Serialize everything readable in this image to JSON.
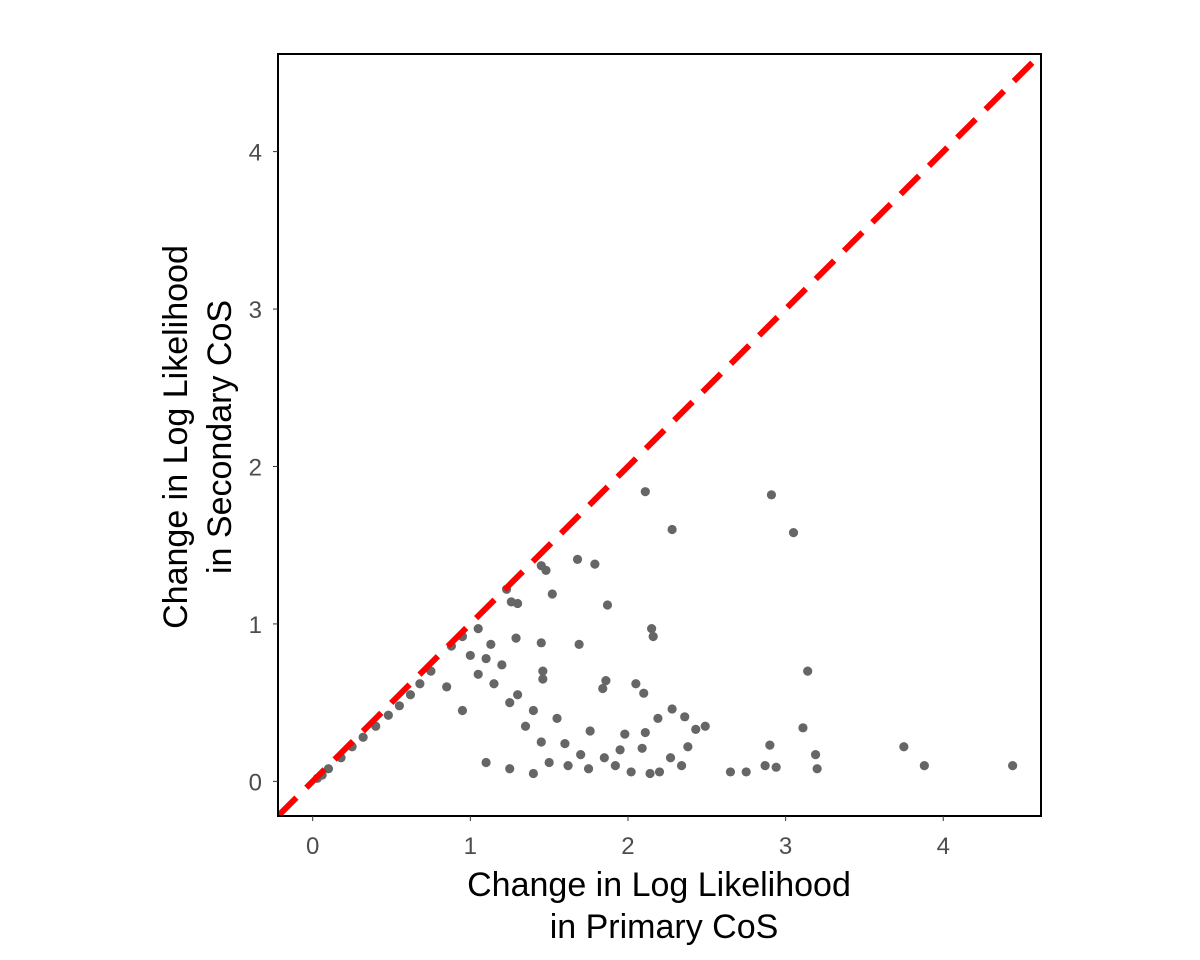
{
  "chart_data": {
    "type": "scatter",
    "title": "",
    "xlabel_lines": [
      "Change in Log Likelihood",
      "in Primary CoS"
    ],
    "ylabel_lines": [
      "Change in Log Likelihood",
      "in Secondary CoS"
    ],
    "xlim": [
      -0.22,
      4.62
    ],
    "ylim": [
      -0.22,
      4.62
    ],
    "xticks": [
      0,
      1,
      2,
      3,
      4
    ],
    "yticks": [
      0,
      1,
      2,
      3,
      4
    ],
    "grid": false,
    "reference_line": {
      "slope": 1,
      "intercept": 0,
      "style": "dashed",
      "color": "#ff0000"
    },
    "point_color": "#666666",
    "series": [
      {
        "values": [
          {
            "x": 4.44,
            "y": 0.1
          },
          {
            "x": 3.88,
            "y": 0.1
          },
          {
            "x": 3.75,
            "y": 0.22
          },
          {
            "x": 3.2,
            "y": 0.08
          },
          {
            "x": 3.19,
            "y": 0.17
          },
          {
            "x": 3.14,
            "y": 0.7
          },
          {
            "x": 3.11,
            "y": 0.34
          },
          {
            "x": 3.05,
            "y": 1.58
          },
          {
            "x": 2.91,
            "y": 1.82
          },
          {
            "x": 2.9,
            "y": 0.23
          },
          {
            "x": 2.94,
            "y": 0.09
          },
          {
            "x": 2.87,
            "y": 0.1
          },
          {
            "x": 2.75,
            "y": 0.06
          },
          {
            "x": 2.65,
            "y": 0.06
          },
          {
            "x": 2.28,
            "y": 1.6
          },
          {
            "x": 2.11,
            "y": 1.84
          },
          {
            "x": 2.15,
            "y": 0.97
          },
          {
            "x": 2.16,
            "y": 0.92
          },
          {
            "x": 1.87,
            "y": 1.12
          },
          {
            "x": 1.79,
            "y": 1.38
          },
          {
            "x": 1.68,
            "y": 1.41
          },
          {
            "x": 1.69,
            "y": 0.87
          },
          {
            "x": 1.48,
            "y": 1.34
          },
          {
            "x": 1.45,
            "y": 1.37
          },
          {
            "x": 1.52,
            "y": 1.19
          },
          {
            "x": 1.26,
            "y": 1.14
          },
          {
            "x": 1.3,
            "y": 1.13
          },
          {
            "x": 1.23,
            "y": 1.22
          },
          {
            "x": 1.29,
            "y": 0.91
          },
          {
            "x": 1.45,
            "y": 0.88
          },
          {
            "x": 1.46,
            "y": 0.7
          },
          {
            "x": 1.46,
            "y": 0.65
          },
          {
            "x": 1.86,
            "y": 0.64
          },
          {
            "x": 1.84,
            "y": 0.59
          },
          {
            "x": 2.05,
            "y": 0.62
          },
          {
            "x": 2.1,
            "y": 0.56
          },
          {
            "x": 2.43,
            "y": 0.33
          },
          {
            "x": 2.49,
            "y": 0.35
          },
          {
            "x": 2.36,
            "y": 0.41
          },
          {
            "x": 2.28,
            "y": 0.46
          },
          {
            "x": 2.19,
            "y": 0.4
          },
          {
            "x": 2.11,
            "y": 0.31
          },
          {
            "x": 2.09,
            "y": 0.21
          },
          {
            "x": 2.38,
            "y": 0.22
          },
          {
            "x": 2.27,
            "y": 0.15
          },
          {
            "x": 2.34,
            "y": 0.1
          },
          {
            "x": 2.2,
            "y": 0.06
          },
          {
            "x": 2.14,
            "y": 0.05
          },
          {
            "x": 2.02,
            "y": 0.06
          },
          {
            "x": 1.92,
            "y": 0.1
          },
          {
            "x": 1.98,
            "y": 0.3
          },
          {
            "x": 1.76,
            "y": 0.32
          },
          {
            "x": 1.7,
            "y": 0.17
          },
          {
            "x": 1.6,
            "y": 0.24
          },
          {
            "x": 1.55,
            "y": 0.4
          },
          {
            "x": 1.4,
            "y": 0.45
          },
          {
            "x": 1.3,
            "y": 0.55
          },
          {
            "x": 1.13,
            "y": 0.87
          },
          {
            "x": 1.05,
            "y": 0.97
          },
          {
            "x": 0.95,
            "y": 0.92
          },
          {
            "x": 0.88,
            "y": 0.86
          },
          {
            "x": 1.0,
            "y": 0.8
          },
          {
            "x": 1.1,
            "y": 0.78
          },
          {
            "x": 1.2,
            "y": 0.74
          },
          {
            "x": 1.05,
            "y": 0.68
          },
          {
            "x": 1.15,
            "y": 0.62
          },
          {
            "x": 1.25,
            "y": 0.5
          },
          {
            "x": 1.35,
            "y": 0.35
          },
          {
            "x": 1.45,
            "y": 0.25
          },
          {
            "x": 1.5,
            "y": 0.12
          },
          {
            "x": 1.62,
            "y": 0.1
          },
          {
            "x": 1.75,
            "y": 0.08
          },
          {
            "x": 1.85,
            "y": 0.15
          },
          {
            "x": 1.95,
            "y": 0.2
          },
          {
            "x": 1.4,
            "y": 0.05
          },
          {
            "x": 1.25,
            "y": 0.08
          },
          {
            "x": 1.1,
            "y": 0.12
          },
          {
            "x": 0.95,
            "y": 0.45
          },
          {
            "x": 0.85,
            "y": 0.6
          },
          {
            "x": 0.75,
            "y": 0.7
          },
          {
            "x": 0.68,
            "y": 0.62
          },
          {
            "x": 0.62,
            "y": 0.55
          },
          {
            "x": 0.55,
            "y": 0.48
          },
          {
            "x": 0.48,
            "y": 0.42
          },
          {
            "x": 0.4,
            "y": 0.35
          },
          {
            "x": 0.32,
            "y": 0.28
          },
          {
            "x": 0.25,
            "y": 0.22
          },
          {
            "x": 0.18,
            "y": 0.15
          },
          {
            "x": 0.1,
            "y": 0.08
          },
          {
            "x": 0.06,
            "y": 0.04
          },
          {
            "x": 0.03,
            "y": 0.02
          }
        ]
      }
    ]
  }
}
